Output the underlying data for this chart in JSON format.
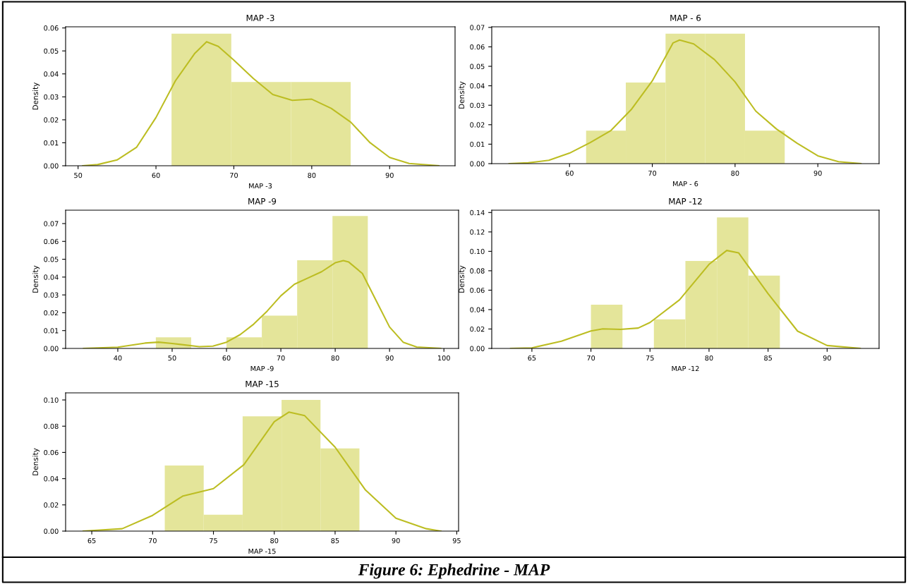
{
  "chart_data": [
    {
      "type": "histogram",
      "title": "MAP -3",
      "xlabel": "MAP -3",
      "ylabel": "Density",
      "xlim": [
        48.4,
        98.4
      ],
      "xticks": [
        50,
        60,
        70,
        80,
        90
      ],
      "ylim": [
        0,
        0.0605
      ],
      "yticks": [
        {
          "value": 0,
          "label": "0.00"
        },
        {
          "value": 0.01,
          "label": "0.01"
        },
        {
          "value": 0.02,
          "label": "0.02"
        },
        {
          "value": 0.03,
          "label": "0.03"
        },
        {
          "value": 0.04,
          "label": "0.04"
        },
        {
          "value": 0.05,
          "label": "0.05"
        },
        {
          "value": 0.06,
          "label": "0.06"
        }
      ],
      "grid": false,
      "legend": false,
      "color": "#e4e59a",
      "bins": [
        62,
        69.67,
        77.33,
        85
      ],
      "values": [
        0.0575,
        0.0365,
        0.0365
      ],
      "series": [
        {
          "type": "line",
          "color": "#bcbd22",
          "x": [
            50.6,
            52.5,
            55,
            57.5,
            60,
            62.5,
            65,
            66.5,
            68,
            70,
            72.5,
            75,
            77.5,
            80,
            82.5,
            85,
            87.5,
            90,
            92.5,
            96.3
          ],
          "values": [
            0,
            0.0005,
            0.0025,
            0.008,
            0.021,
            0.037,
            0.049,
            0.054,
            0.052,
            0.046,
            0.038,
            0.031,
            0.0285,
            0.029,
            0.025,
            0.019,
            0.01,
            0.0036,
            0.001,
            0
          ]
        }
      ]
    },
    {
      "type": "histogram",
      "title": "MAP - 6",
      "xlabel": "MAP - 6",
      "ylabel": "Density",
      "xlim": [
        50.6,
        97.4
      ],
      "xticks": [
        60,
        70,
        80,
        90
      ],
      "ylim": [
        0,
        0.0703
      ],
      "yticks": [
        {
          "value": 0,
          "label": "0.00"
        },
        {
          "value": 0.01,
          "label": "0.01"
        },
        {
          "value": 0.02,
          "label": "0.02"
        },
        {
          "value": 0.03,
          "label": "0.03"
        },
        {
          "value": 0.04,
          "label": "0.04"
        },
        {
          "value": 0.05,
          "label": "0.05"
        },
        {
          "value": 0.06,
          "label": "0.06"
        },
        {
          "value": 0.07,
          "label": "0.07"
        }
      ],
      "grid": false,
      "legend": false,
      "color": "#e4e59a",
      "bins": [
        62,
        66.8,
        71.6,
        76.4,
        81.2,
        86
      ],
      "values": [
        0.0169,
        0.0417,
        0.0668,
        0.0668,
        0.0169
      ],
      "series": [
        {
          "type": "line",
          "color": "#bcbd22",
          "x": [
            52.7,
            55,
            57.5,
            60,
            62.5,
            65,
            67.5,
            70,
            72.5,
            73.3,
            75,
            77.5,
            80,
            82.5,
            85,
            87.5,
            90,
            92.5,
            95.2
          ],
          "values": [
            0,
            0.0004,
            0.0017,
            0.0054,
            0.0108,
            0.017,
            0.028,
            0.0425,
            0.062,
            0.0635,
            0.0615,
            0.0535,
            0.042,
            0.027,
            0.0178,
            0.0105,
            0.004,
            0.001,
            0
          ]
        }
      ]
    },
    {
      "type": "histogram",
      "title": "MAP -9",
      "xlabel": "MAP -9",
      "ylabel": "Density",
      "xlim": [
        30.4,
        102.7
      ],
      "xticks": [
        40,
        50,
        60,
        70,
        80,
        90,
        100
      ],
      "ylim": [
        0,
        0.0775
      ],
      "yticks": [
        {
          "value": 0,
          "label": "0.00"
        },
        {
          "value": 0.01,
          "label": "0.01"
        },
        {
          "value": 0.02,
          "label": "0.02"
        },
        {
          "value": 0.03,
          "label": "0.03"
        },
        {
          "value": 0.04,
          "label": "0.04"
        },
        {
          "value": 0.05,
          "label": "0.05"
        },
        {
          "value": 0.06,
          "label": "0.06"
        },
        {
          "value": 0.07,
          "label": "0.07"
        }
      ],
      "grid": false,
      "legend": false,
      "color": "#e4e59a",
      "bins": [
        47,
        53.5,
        60,
        66.5,
        73,
        79.5,
        86
      ],
      "values": [
        0.0062,
        0,
        0.0062,
        0.0184,
        0.0494,
        0.0742
      ],
      "series": [
        {
          "type": "line",
          "color": "#bcbd22",
          "x": [
            33.7,
            40,
            45,
            47.5,
            50,
            55,
            57.5,
            60,
            62.5,
            65,
            67.5,
            70,
            72.5,
            75,
            77.5,
            80,
            81.5,
            82.5,
            85,
            87.5,
            90,
            92.5,
            95,
            99.4
          ],
          "values": [
            0,
            0.0007,
            0.003,
            0.0035,
            0.0028,
            0.001,
            0.0013,
            0.0035,
            0.0077,
            0.0136,
            0.021,
            0.0295,
            0.036,
            0.0395,
            0.043,
            0.048,
            0.0492,
            0.0484,
            0.042,
            0.027,
            0.012,
            0.0035,
            0.0008,
            0
          ]
        }
      ]
    },
    {
      "type": "histogram",
      "title": "MAP -12",
      "xlabel": "MAP -12",
      "ylabel": "Density",
      "xlim": [
        61.6,
        94.4
      ],
      "xticks": [
        65,
        70,
        75,
        80,
        85,
        90
      ],
      "ylim": [
        0,
        0.1424
      ],
      "yticks": [
        {
          "value": 0,
          "label": "0.00"
        },
        {
          "value": 0.02,
          "label": "0.02"
        },
        {
          "value": 0.04,
          "label": "0.04"
        },
        {
          "value": 0.06,
          "label": "0.06"
        },
        {
          "value": 0.08,
          "label": "0.08"
        },
        {
          "value": 0.1,
          "label": "0.10"
        },
        {
          "value": 0.12,
          "label": "0.12"
        },
        {
          "value": 0.14,
          "label": "0.14"
        }
      ],
      "grid": false,
      "legend": false,
      "color": "#e4e59a",
      "bins": [
        70,
        72.67,
        75.33,
        78,
        80.67,
        83.33,
        86
      ],
      "values": [
        0.045,
        0,
        0.03,
        0.09,
        0.135,
        0.075
      ],
      "series": [
        {
          "type": "line",
          "color": "#bcbd22",
          "x": [
            63.2,
            65,
            67.5,
            70,
            71,
            72.5,
            74,
            75,
            77.5,
            80,
            81.5,
            82.5,
            85,
            87.5,
            90,
            92.8
          ],
          "values": [
            0,
            0.0006,
            0.0074,
            0.018,
            0.0202,
            0.0196,
            0.021,
            0.0267,
            0.05,
            0.0866,
            0.1009,
            0.0985,
            0.0564,
            0.0178,
            0.003,
            0
          ]
        }
      ]
    },
    {
      "type": "histogram",
      "title": "MAP -15",
      "xlabel": "MAP -15",
      "ylabel": "Density",
      "xlim": [
        62.85,
        95.15
      ],
      "xticks": [
        65,
        70,
        75,
        80,
        85,
        90,
        95
      ],
      "ylim": [
        0,
        0.1054
      ],
      "yticks": [
        {
          "value": 0,
          "label": "0.00"
        },
        {
          "value": 0.02,
          "label": "0.02"
        },
        {
          "value": 0.04,
          "label": "0.04"
        },
        {
          "value": 0.06,
          "label": "0.06"
        },
        {
          "value": 0.08,
          "label": "0.08"
        },
        {
          "value": 0.1,
          "label": "0.10"
        }
      ],
      "grid": false,
      "legend": false,
      "annotations": [
        "Figure 6: Ephedrine - MAP"
      ],
      "color": "#e4e59a",
      "bins": [
        71,
        74.2,
        77.4,
        80.6,
        83.8,
        87
      ],
      "values": [
        0.05,
        0.0125,
        0.0875,
        0.1,
        0.063
      ],
      "series": [
        {
          "type": "line",
          "color": "#bcbd22",
          "x": [
            64.3,
            67.5,
            70,
            72.5,
            75,
            77.5,
            80,
            81.2,
            82.5,
            85,
            87.5,
            90,
            92.5,
            93.7
          ],
          "values": [
            0,
            0.0018,
            0.012,
            0.0268,
            0.0324,
            0.0506,
            0.0834,
            0.0907,
            0.088,
            0.064,
            0.0313,
            0.0098,
            0.0018,
            0
          ]
        }
      ]
    }
  ]
}
